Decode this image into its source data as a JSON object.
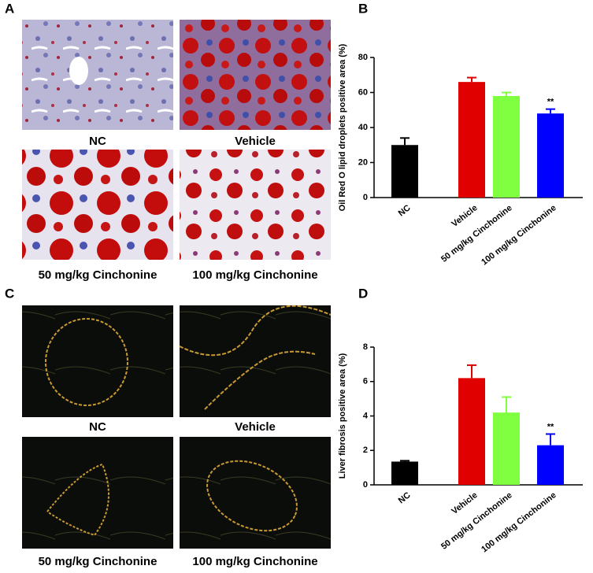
{
  "panels": {
    "A": {
      "label": "A",
      "captions": [
        "NC",
        "Vehicle",
        "50 mg/kg Cinchonine",
        "100 mg/kg Cinchonine"
      ]
    },
    "C": {
      "label": "C",
      "captions": [
        "NC",
        "Vehicle",
        "50 mg/kg Cinchonine",
        "100 mg/kg Cinchonine"
      ]
    }
  },
  "chart_data": [
    {
      "type": "bar",
      "label": "B",
      "y_label": "Oil Red O lipid droplets  positive area (%)",
      "categories": [
        "NC",
        "Vehicle",
        "50 mg/kg Cinchonine",
        "100 mg/kg Cinchonine"
      ],
      "values": [
        30,
        66,
        58,
        48
      ],
      "errors": [
        4,
        2.5,
        2,
        2.5
      ],
      "colors": [
        "#000000",
        "#e00000",
        "#80ff40",
        "#0000ff"
      ],
      "significance": [
        null,
        null,
        null,
        "**"
      ],
      "ylim": [
        0,
        80
      ],
      "yticks": [
        0,
        20,
        40,
        60,
        80
      ]
    },
    {
      "type": "bar",
      "label": "D",
      "y_label": "Liver fibrosis positive area (%)",
      "categories": [
        "NC",
        "Vehicle",
        "50 mg/kg Cinchonine",
        "100 mg/kg Cinchonine"
      ],
      "values": [
        1.35,
        6.2,
        4.2,
        2.3
      ],
      "errors": [
        0.05,
        0.75,
        0.9,
        0.65
      ],
      "colors": [
        "#000000",
        "#e00000",
        "#80ff40",
        "#0000ff"
      ],
      "significance": [
        null,
        null,
        null,
        "**"
      ],
      "ylim": [
        0,
        8
      ],
      "yticks": [
        0,
        2,
        4,
        6,
        8
      ]
    }
  ]
}
